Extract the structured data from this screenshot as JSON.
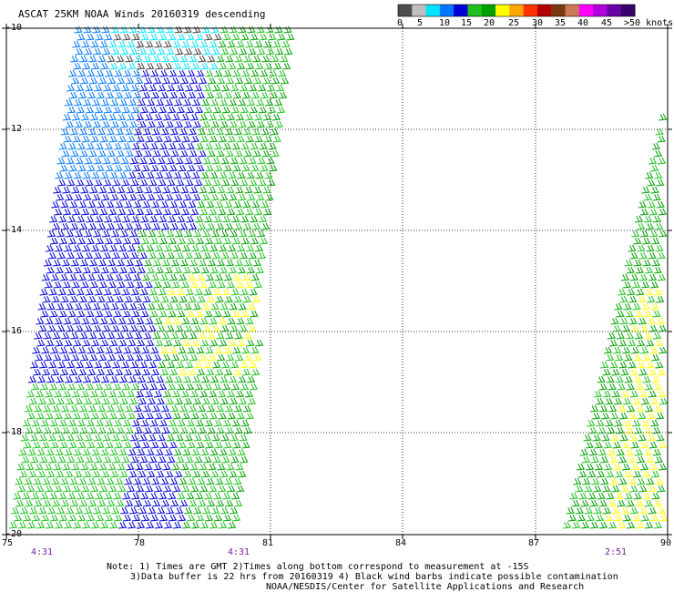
{
  "title": "ASCAT 25KM NOAA Winds 20160319 descending",
  "colorscale": {
    "colors": [
      "#4d4d4d",
      "#bfbfbf",
      "#00e5ff",
      "#0077ff",
      "#0000d8",
      "#1fbf1f",
      "#00a000",
      "#ffff00",
      "#ffa500",
      "#ff3300",
      "#b30000",
      "#7a3a10",
      "#cc7755",
      "#ff00ff",
      "#b000e0",
      "#6a00a8",
      "#3a006a"
    ],
    "labels": [
      "0",
      "5",
      "10",
      "15",
      "20",
      "25",
      "30",
      "35",
      "40",
      "45",
      ">50 knots"
    ]
  },
  "axes": {
    "longitudes": [
      "75",
      "78",
      "81",
      "84",
      "87",
      "90"
    ],
    "latitudes": [
      "-10",
      "-12",
      "-14",
      "-16",
      "-18",
      "-20"
    ]
  },
  "times": [
    "4:31",
    "4:31",
    "2:51"
  ],
  "notes": [
    "Note: 1) Times are GMT 2)Times along bottom correspond to measurement at -15S",
    "3)Data buffer is 22 hrs from 20160319 4) Black wind barbs indicate possible contamination",
    "NOAA/NESDIS/Center for Satellite Applications and Research"
  ],
  "swath_colors": {
    "dark_blue": "#0000d8",
    "medium_blue": "#0077ff",
    "cyan": "#00e5ff",
    "bright_green": "#1fbf1f",
    "dark_green": "#00a000",
    "yellow": "#ffff00",
    "gray": "#404040"
  }
}
